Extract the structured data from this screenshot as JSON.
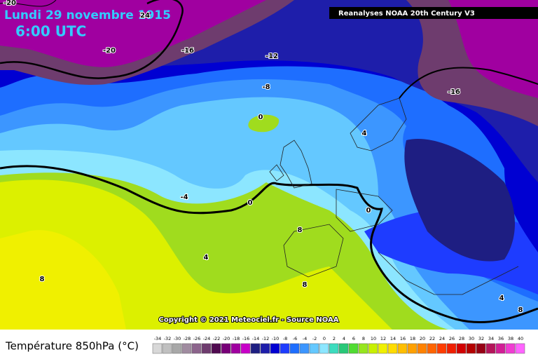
{
  "header": {
    "title": "Lundi 29 novembre 1915",
    "time": "6:00 UTC",
    "source": "Reanalyses NOAA 20th Century V3"
  },
  "copyright": "Copyright © 2021 Meteociel.fr - Source NOAA",
  "contour_labels": [
    -20,
    24,
    -20,
    -16,
    -12,
    -8,
    -16,
    0,
    4,
    -4,
    0,
    0,
    8,
    4,
    8,
    8,
    4,
    8
  ],
  "legend": {
    "title": "Température 850hPa (°C)",
    "ticks": [
      -34,
      -32,
      -30,
      -28,
      -26,
      -24,
      -22,
      -20,
      -18,
      -16,
      -14,
      -12,
      -10,
      -8,
      -6,
      -4,
      -2,
      0,
      2,
      4,
      6,
      8,
      10,
      12,
      14,
      16,
      18,
      20,
      22,
      24,
      26,
      28,
      30,
      32,
      34,
      36,
      38,
      40
    ],
    "colors": [
      "#d8d8d8",
      "#c0c0c0",
      "#a8a8a8",
      "#a08ca0",
      "#8c648c",
      "#6e3c6e",
      "#500a50",
      "#780078",
      "#a000a0",
      "#c800c8",
      "#1e1e82",
      "#1e1eaa",
      "#0000d2",
      "#1e3cff",
      "#1e6eff",
      "#3c96ff",
      "#64c8ff",
      "#8ce6ff",
      "#3cdcbe",
      "#28c878",
      "#50dc32",
      "#96e61e",
      "#c8f000",
      "#f0f000",
      "#ffdc00",
      "#ffbe00",
      "#ffa000",
      "#ff8200",
      "#ff6400",
      "#ff3c00",
      "#f01e00",
      "#d20000",
      "#b40000",
      "#960014",
      "#b4145a",
      "#d21e96",
      "#f03cd2",
      "#ff64ff"
    ]
  }
}
